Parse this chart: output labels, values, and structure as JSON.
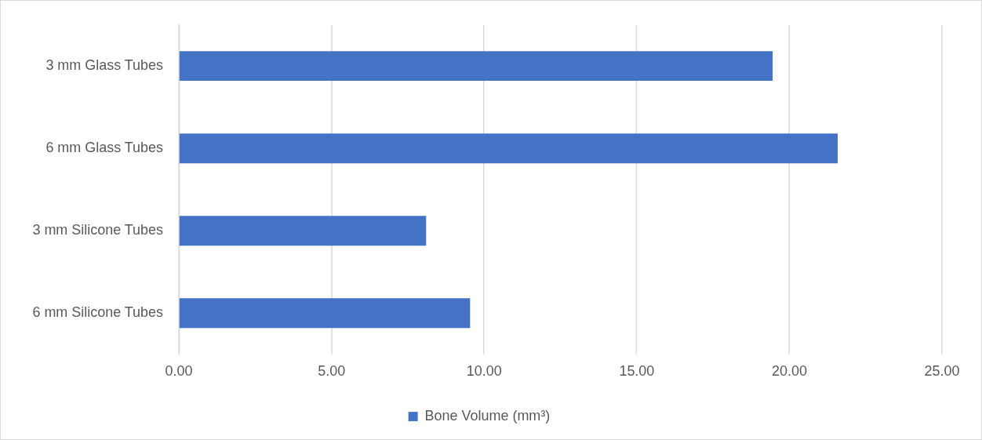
{
  "chart_data": {
    "type": "bar",
    "orientation": "horizontal",
    "categories": [
      "3 mm Glass Tubes",
      "6 mm Glass Tubes",
      "3 mm Silicone Tubes",
      "6 mm Silicone Tubes"
    ],
    "series": [
      {
        "name": "Bone Volume (mm³)",
        "color": "#4472c4",
        "values": [
          19.45,
          21.58,
          8.1,
          9.54
        ]
      }
    ],
    "xlim": [
      0,
      25
    ],
    "xticks": [
      {
        "value": 0,
        "label": "0.00"
      },
      {
        "value": 5,
        "label": "5.00"
      },
      {
        "value": 10,
        "label": "10.00"
      },
      {
        "value": 15,
        "label": "15.00"
      },
      {
        "value": 20,
        "label": "20.00"
      },
      {
        "value": 25,
        "label": "25.00"
      }
    ],
    "grid": "x",
    "legend": "bottom"
  }
}
